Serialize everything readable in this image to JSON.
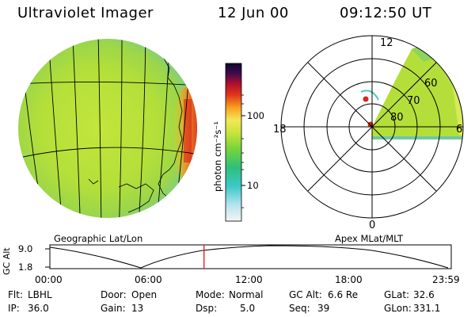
{
  "header": {
    "instrument": "Ultraviolet Imager",
    "date": "12 Jun 00",
    "time": "09:12:50 UT"
  },
  "colorbar": {
    "unit_label": "photon cm⁻²s⁻¹",
    "ticks": [
      "100",
      "10"
    ]
  },
  "panels": {
    "left_label": "Geographic Lat/Lon",
    "right_label": "Apex MLat/MLT"
  },
  "polar": {
    "mlt_labels": {
      "top": "12",
      "left": "18",
      "right": "6",
      "bottom": "0"
    },
    "lat_labels": [
      "60",
      "70",
      "80"
    ]
  },
  "altitude_plot": {
    "ylabel": "GC Alt",
    "ymax_label": "9.0",
    "ymin_label": "1.8",
    "x_ticks": [
      "00:00",
      "06:00",
      "12:00",
      "18:00",
      "23:59"
    ],
    "current_time_fraction": 0.384
  },
  "status": {
    "row1": [
      {
        "label": "Flt:",
        "value": "LBHL"
      },
      {
        "label": "Door:",
        "value": "Open"
      },
      {
        "label": "Mode:",
        "value": "Normal"
      },
      {
        "label": "GC Alt:",
        "value": "6.6 Re"
      },
      {
        "label": "GLat:",
        "value": "32.6"
      }
    ],
    "row2": [
      {
        "label": "IP:",
        "value": "36.0"
      },
      {
        "label": "Gain:",
        "value": "13"
      },
      {
        "label": "Dsp:",
        "value": "5.0"
      },
      {
        "label": "Seq:",
        "value": "39"
      },
      {
        "label": "GLon:",
        "value": "331.1"
      }
    ]
  },
  "colors": {
    "globe_fill": "#b8e23a",
    "glow": "#e0261c",
    "background": "#ffffff",
    "time_marker": "#d9262a"
  }
}
